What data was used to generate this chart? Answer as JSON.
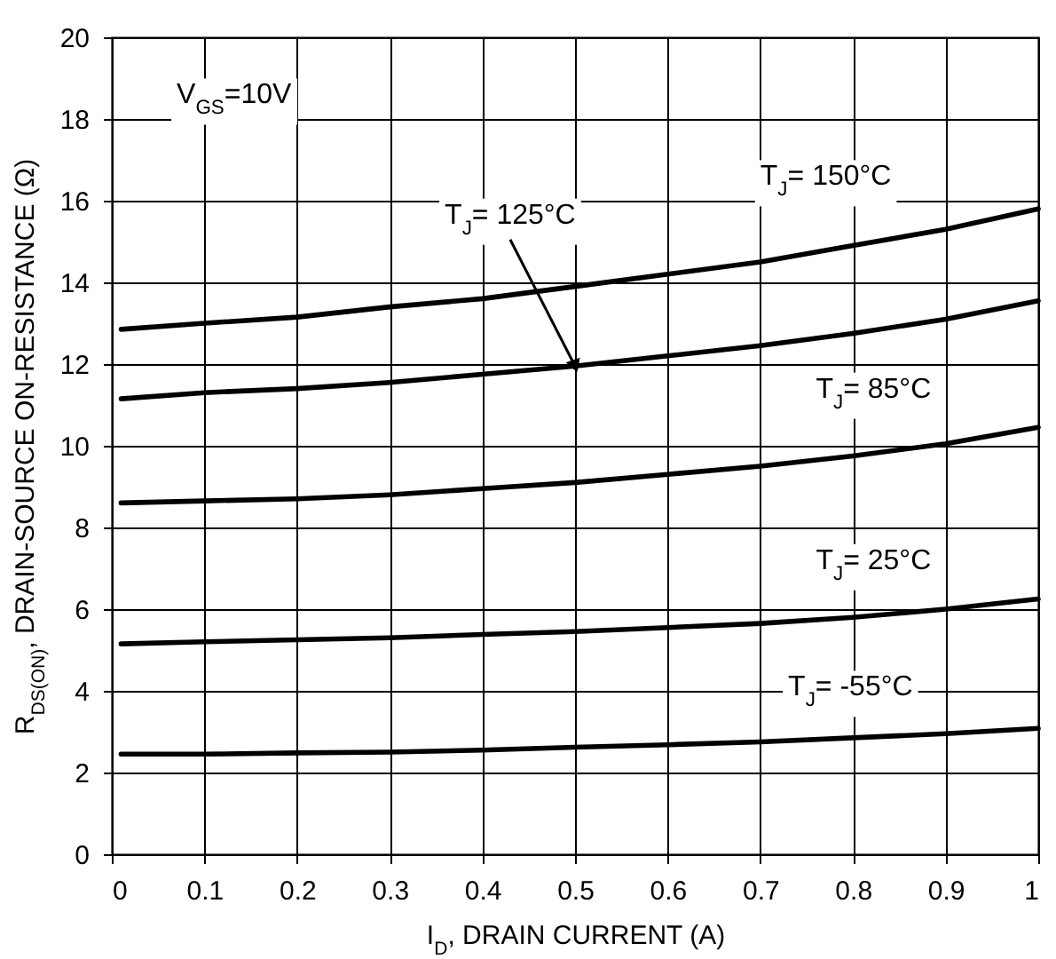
{
  "chart_data": {
    "type": "line",
    "xlabel": "I$_{D}$, DRAIN CURRENT (A)",
    "ylabel": "R$_{DS(ON)}$, DRAIN-SOURCE ON-RESISTANCE (Ω)",
    "x": [
      0.01,
      0.1,
      0.2,
      0.3,
      0.4,
      0.5,
      0.6,
      0.7,
      0.8,
      0.9,
      1.0
    ],
    "series": [
      {
        "color": "#000000",
        "values": [
          12.85,
          13.0,
          13.15,
          13.4,
          13.6,
          13.9,
          14.2,
          14.5,
          14.9,
          15.3,
          15.8
        ]
      },
      {
        "color": "#000000",
        "values": [
          11.15,
          11.3,
          11.4,
          11.55,
          11.75,
          11.95,
          12.2,
          12.45,
          12.75,
          13.1,
          13.55
        ]
      },
      {
        "color": "#000000",
        "values": [
          8.6,
          8.65,
          8.7,
          8.8,
          8.95,
          9.1,
          9.3,
          9.5,
          9.75,
          10.05,
          10.45
        ]
      },
      {
        "color": "#000000",
        "values": [
          5.15,
          5.2,
          5.25,
          5.3,
          5.38,
          5.45,
          5.55,
          5.65,
          5.8,
          6.0,
          6.25
        ]
      },
      {
        "color": "#000000",
        "values": [
          2.45,
          2.45,
          2.48,
          2.5,
          2.55,
          2.62,
          2.68,
          2.75,
          2.85,
          2.95,
          3.08
        ]
      }
    ],
    "xlim": [
      0,
      1
    ],
    "xticks": [
      0,
      0.1,
      0.2,
      0.3,
      0.4,
      0.5,
      0.6,
      0.7,
      0.8,
      0.9,
      1
    ],
    "ylim": [
      0,
      20
    ],
    "yticks": [
      0,
      2,
      4,
      6,
      8,
      10,
      12,
      14,
      16,
      18,
      20
    ],
    "grid": true,
    "legend": false,
    "line_style": "solid",
    "marker": "none",
    "annotations": [
      "V$_{GS}$=10V",
      "T$_{J}$= 150°C",
      {
        "text": "T$_{J}$= 125°C",
        "x": 0.5,
        "y": 11.95
      },
      "T$_{J}$= 85°C",
      "T$_{J}$= 25°C",
      "T$_{J}$= -55°C"
    ]
  }
}
